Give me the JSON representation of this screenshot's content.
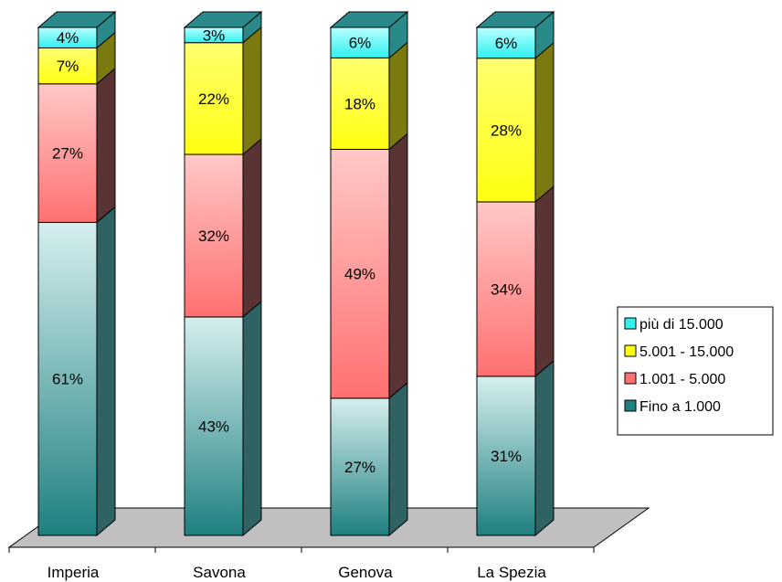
{
  "chart_data": {
    "type": "bar",
    "stacked": true,
    "percent_stacked": true,
    "three_d": true,
    "categories": [
      "Imperia",
      "Savona",
      "Genova",
      "La Spezia"
    ],
    "series": [
      {
        "name": "Fino a 1.000",
        "values": [
          61,
          43,
          27,
          31
        ],
        "labels": [
          "61%",
          "43%",
          "27%",
          "31%"
        ],
        "color_top": "#d6efef",
        "color_bottom": "#1f8080",
        "side_color": "#2f6262"
      },
      {
        "name": "1.001 - 5.000",
        "values": [
          27,
          32,
          49,
          34
        ],
        "labels": [
          "27%",
          "32%",
          "49%",
          "34%"
        ],
        "color_top": "#ffc8c8",
        "color_bottom": "#ff7070",
        "side_color": "#5a3434"
      },
      {
        "name": "5.001 - 15.000",
        "values": [
          7,
          22,
          18,
          28
        ],
        "labels": [
          "7%",
          "22%",
          "18%",
          "28%"
        ],
        "color_top": "#ffff70",
        "color_bottom": "#ffff10",
        "side_color": "#7a7a10"
      },
      {
        "name": "più di 15.000",
        "values": [
          4,
          3,
          6,
          6
        ],
        "labels": [
          "4%",
          "3%",
          "6%",
          "6%"
        ],
        "color_top": "#b8ffff",
        "color_bottom": "#30f0f0",
        "side_color": "#2a8a8a"
      }
    ],
    "legend_order": [
      3,
      2,
      1,
      0
    ],
    "legend_position": "right",
    "ylim": [
      0,
      100
    ],
    "grid": false
  }
}
